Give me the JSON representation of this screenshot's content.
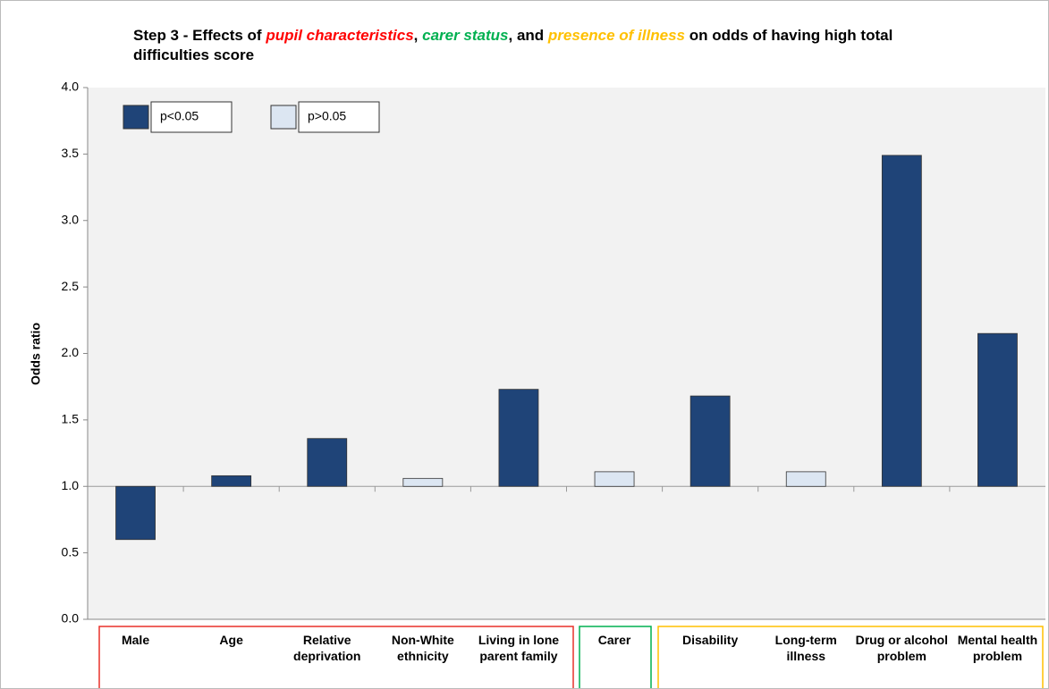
{
  "chart_data": {
    "type": "bar",
    "title": [
      {
        "text": "Step 3 - Effects of "
      },
      {
        "text": "pupil characteristics",
        "color": "#ff0000",
        "italic": true
      },
      {
        "text": ", "
      },
      {
        "text": "carer status",
        "color": "#00b050",
        "italic": true
      },
      {
        "text": ", and "
      },
      {
        "text": "presence of illness",
        "color": "#ffc000",
        "italic": true
      },
      {
        "text": " on odds of having high total difficulties score"
      }
    ],
    "y_label": "Odds ratio",
    "categories": [
      "Male",
      "Age",
      "Relative deprivation",
      "Non-White ethnicity",
      "Living in lone parent family",
      "Carer",
      "Disability",
      "Long-term illness",
      "Drug or alcohol problem",
      "Mental health problem"
    ],
    "series": [
      {
        "name": "p<0.05",
        "color": "#1f4478",
        "values": [
          0.6,
          1.08,
          1.36,
          null,
          1.73,
          null,
          1.68,
          null,
          3.49,
          2.15
        ]
      },
      {
        "name": "p>0.05",
        "color": "#dce6f2",
        "values": [
          null,
          null,
          null,
          1.06,
          null,
          1.11,
          null,
          1.11,
          null,
          null
        ]
      }
    ],
    "baseline": 1,
    "ylim": [
      0,
      4
    ],
    "yticks": [
      {
        "value": 0,
        "label": "0.0"
      },
      0.5,
      {
        "value": 1,
        "label": "1.0"
      },
      1.5,
      {
        "value": 2,
        "label": "2.0"
      },
      2.5,
      {
        "value": 3,
        "label": "3.0"
      },
      3.5,
      {
        "value": 4,
        "label": "4.0"
      }
    ],
    "legend": "upper left"
  }
}
